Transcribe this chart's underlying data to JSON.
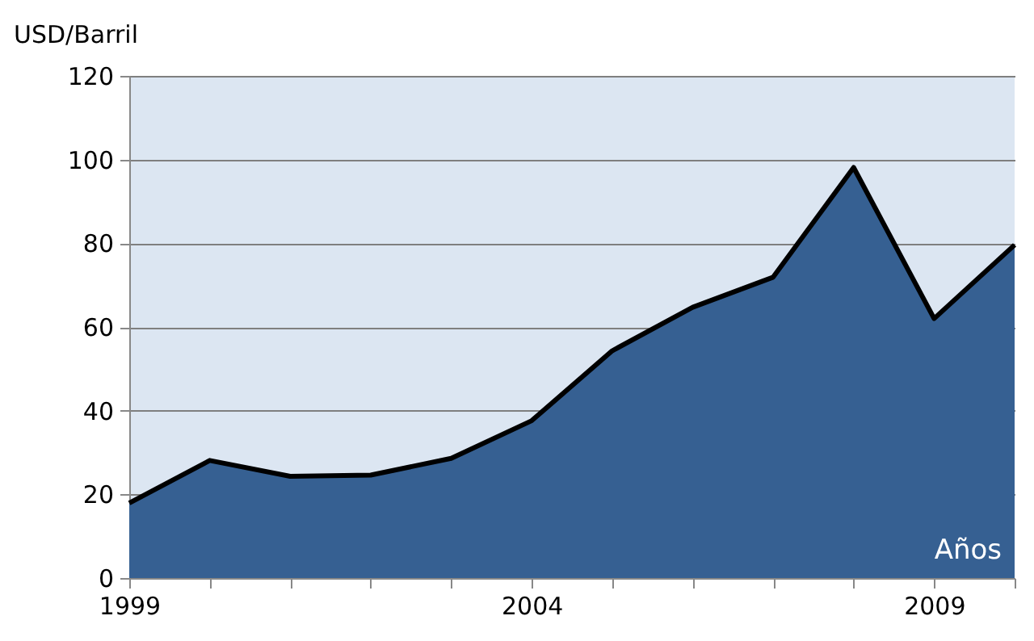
{
  "chart_data": {
    "type": "area",
    "ylabel": "USD/Barril",
    "xlabel": "Años",
    "x": [
      1999,
      2000,
      2001,
      2002,
      2003,
      2004,
      2005,
      2006,
      2007,
      2008,
      2009,
      2010
    ],
    "series": [
      {
        "color": "#366092",
        "values": [
          17.9,
          28.1,
          24.3,
          24.6,
          28.6,
          37.6,
          54.3,
          64.7,
          71.9,
          98.1,
          62.0,
          79.6
        ]
      }
    ],
    "xlim": [
      1999,
      2010
    ],
    "xticks": [
      1999,
      {
        "value": 2000,
        "label": null
      },
      {
        "value": 2001,
        "label": null
      },
      {
        "value": 2002,
        "label": null
      },
      {
        "value": 2003,
        "label": null
      },
      2004,
      {
        "value": 2005,
        "label": null
      },
      {
        "value": 2006,
        "label": null
      },
      {
        "value": 2007,
        "label": null
      },
      {
        "value": 2008,
        "label": null
      },
      2009,
      {
        "value": 2010,
        "label": null
      }
    ],
    "ylim": [
      0,
      120
    ],
    "yticks": [
      0,
      20,
      40,
      60,
      80,
      100,
      120
    ],
    "grid": "y"
  }
}
